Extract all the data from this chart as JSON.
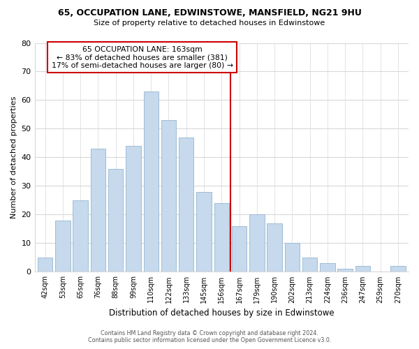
{
  "title1": "65, OCCUPATION LANE, EDWINSTOWE, MANSFIELD, NG21 9HU",
  "title2": "Size of property relative to detached houses in Edwinstowe",
  "xlabel": "Distribution of detached houses by size in Edwinstowe",
  "ylabel": "Number of detached properties",
  "categories": [
    "42sqm",
    "53sqm",
    "65sqm",
    "76sqm",
    "88sqm",
    "99sqm",
    "110sqm",
    "122sqm",
    "133sqm",
    "145sqm",
    "156sqm",
    "167sqm",
    "179sqm",
    "190sqm",
    "202sqm",
    "213sqm",
    "224sqm",
    "236sqm",
    "247sqm",
    "259sqm",
    "270sqm"
  ],
  "values": [
    5,
    18,
    25,
    43,
    36,
    44,
    63,
    53,
    47,
    28,
    24,
    16,
    20,
    17,
    10,
    5,
    3,
    1,
    2,
    0,
    2
  ],
  "bar_color": "#c6d9ed",
  "bar_edge_color": "#a0bdd4",
  "property_line_x": 10.5,
  "annotation_title": "65 OCCUPATION LANE: 163sqm",
  "annotation_line1": "← 83% of detached houses are smaller (381)",
  "annotation_line2": "17% of semi-detached houses are larger (80) →",
  "box_color": "#cc0000",
  "ylim": [
    0,
    80
  ],
  "yticks": [
    0,
    10,
    20,
    30,
    40,
    50,
    60,
    70,
    80
  ],
  "footer1": "Contains HM Land Registry data © Crown copyright and database right 2024.",
  "footer2": "Contains public sector information licensed under the Open Government Licence v3.0.",
  "bg_color": "#ffffff",
  "grid_color": "#d8d8d8"
}
